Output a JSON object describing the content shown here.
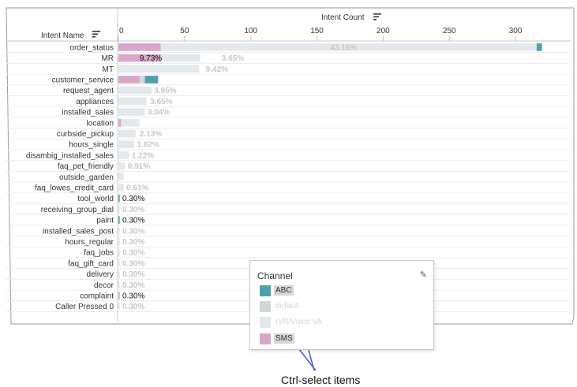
{
  "chart_data": {
    "type": "bar",
    "orientation": "horizontal",
    "stacked": true,
    "x_title": "Intent Count",
    "row_header": "Intent Name",
    "x_ticks": [
      0,
      50,
      100,
      150,
      200,
      250,
      300
    ],
    "xlim": [
      0,
      325
    ],
    "grid": false,
    "colors": {
      "ABC": "#4ea1ac",
      "default": "#cfd8d3",
      "IVR/Voice VA": "#e3e8ec",
      "SMS": "#d7a6c9"
    },
    "categories": [
      "order_status",
      "MR",
      "MT",
      "customer_service",
      "request_agent",
      "appliances",
      "installed_sales",
      "location",
      "curbside_pickup",
      "hours_single",
      "disambig_installed_sales",
      "faq_pet_friendly",
      "outside_garden",
      "faq_lowes_credit_card",
      "tool_world",
      "receiving_group_dial",
      "paint",
      "installed_sales_post",
      "hours_regular",
      "faq_jobs",
      "faq_gift_card",
      "delivery",
      "decor",
      "complaint",
      "Caller Pressed 0"
    ],
    "series": [
      {
        "name": "SMS",
        "values": [
          32,
          32,
          0,
          16,
          0,
          0,
          0,
          2,
          0,
          0,
          0,
          0,
          0,
          0,
          0,
          0,
          0,
          0,
          0,
          0,
          0,
          0,
          0,
          1,
          0
        ]
      },
      {
        "name": "default",
        "values": [
          0,
          0,
          0,
          4,
          0,
          0,
          0,
          0,
          0,
          0,
          0,
          0,
          0,
          0,
          0,
          0,
          0,
          0,
          0,
          0,
          0,
          0,
          0,
          0,
          0
        ]
      },
      {
        "name": "IVR/Voice VA",
        "values": [
          284,
          30,
          61,
          0,
          25,
          21,
          20,
          14,
          13,
          12,
          8,
          5,
          4,
          4,
          0,
          1,
          0,
          1,
          1,
          1,
          1,
          1,
          1,
          0,
          1
        ]
      },
      {
        "name": "ABC",
        "values": [
          4,
          0,
          0,
          10,
          0,
          0,
          0,
          0,
          0,
          0,
          0,
          0,
          0,
          0,
          1,
          0,
          1,
          0,
          0,
          0,
          0,
          0,
          0,
          0,
          0
        ]
      }
    ],
    "labels": [
      [
        {
          "text": "43.16%",
          "x": 160,
          "color": "#c8c8c8"
        }
      ],
      [
        {
          "text": "9.73%",
          "x": 16,
          "color": "#111111"
        },
        {
          "text": "3.65%",
          "x": 78,
          "color": "#c8c8c8"
        }
      ],
      [
        {
          "text": "9.42%",
          "x": 66,
          "color": "#c8c8c8"
        }
      ],
      [],
      [
        {
          "text": "3.95%",
          "x": 27,
          "color": "#c8c8c8"
        }
      ],
      [
        {
          "text": "3.65%",
          "x": 24,
          "color": "#c8c8c8"
        }
      ],
      [
        {
          "text": "3.04%",
          "x": 22,
          "color": "#c8c8c8"
        }
      ],
      [],
      [
        {
          "text": "2.13%",
          "x": 16,
          "color": "#c8c8c8"
        }
      ],
      [
        {
          "text": "1.82%",
          "x": 14,
          "color": "#c8c8c8"
        }
      ],
      [
        {
          "text": "1.22%",
          "x": 10,
          "color": "#c8c8c8"
        }
      ],
      [
        {
          "text": "0.91%",
          "x": 7,
          "color": "#c8c8c8"
        }
      ],
      [],
      [
        {
          "text": "0.61%",
          "x": 6,
          "color": "#c8c8c8"
        }
      ],
      [
        {
          "text": "0.30%",
          "x": 3,
          "color": "#111111"
        }
      ],
      [
        {
          "text": "0.30%",
          "x": 3,
          "color": "#c8c8c8"
        }
      ],
      [
        {
          "text": "0.30%",
          "x": 3,
          "color": "#111111"
        }
      ],
      [
        {
          "text": "0.30%",
          "x": 3,
          "color": "#c8c8c8"
        }
      ],
      [
        {
          "text": "0.30%",
          "x": 3,
          "color": "#c8c8c8"
        }
      ],
      [
        {
          "text": "0.30%",
          "x": 3,
          "color": "#c8c8c8"
        }
      ],
      [
        {
          "text": "0.30%",
          "x": 3,
          "color": "#c8c8c8"
        }
      ],
      [
        {
          "text": "0.30%",
          "x": 3,
          "color": "#c8c8c8"
        }
      ],
      [
        {
          "text": "0.30%",
          "x": 3,
          "color": "#c8c8c8"
        }
      ],
      [
        {
          "text": "0.30%",
          "x": 3,
          "color": "#111111"
        }
      ],
      [
        {
          "text": "0.30%",
          "x": 3,
          "color": "#c8c8c8"
        }
      ]
    ]
  },
  "legend": {
    "title": "Channel",
    "edit_icon": "pencil-icon",
    "items": [
      {
        "label": "ABC",
        "color": "#4ea1ac",
        "selected": true
      },
      {
        "label": "default",
        "color": "#cfd8d3",
        "selected": false
      },
      {
        "label": "IVR/Voice VA",
        "color": "#e3e8ec",
        "selected": false
      },
      {
        "label": "SMS",
        "color": "#d7a6c9",
        "selected": true
      }
    ]
  },
  "annotation": {
    "text": "Ctrl-select items",
    "color": "#4a55e0"
  },
  "icons": {
    "sort_header": "sort-icon",
    "sort_axis": "sort-icon"
  }
}
